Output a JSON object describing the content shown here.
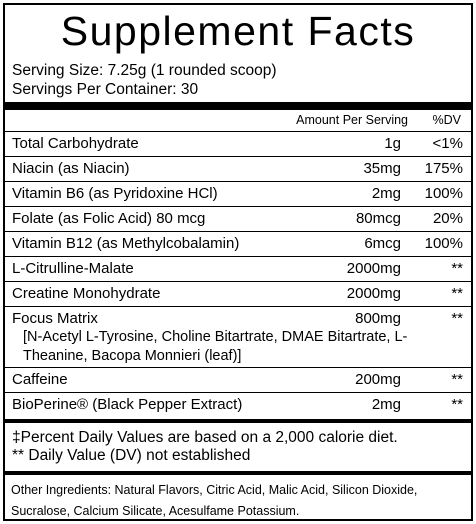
{
  "title": "Supplement Facts",
  "serving_size": "Serving Size: 7.25g (1 rounded scoop)",
  "servings_per_container": "Servings Per Container: 30",
  "header": {
    "amount_label": "Amount Per Serving",
    "dv_label": "%DV"
  },
  "rows": [
    {
      "name": "Total Carbohydrate",
      "amount": "1g",
      "dv": "<1%"
    },
    {
      "name": "Niacin (as Niacin)",
      "amount": "35mg",
      "dv": "175%"
    },
    {
      "name": "Vitamin B6 (as Pyridoxine HCl)",
      "amount": "2mg",
      "dv": "100%"
    },
    {
      "name": "Folate (as Folic Acid) 80 mcg",
      "amount": "80mcg",
      "dv": "20%"
    },
    {
      "name": "Vitamin B12 (as Methylcobalamin)",
      "amount": "6mcg",
      "dv": "100%"
    },
    {
      "name": "L-Citrulline-Malate",
      "amount": "2000mg",
      "dv": "**"
    },
    {
      "name": "Creatine Monohydrate",
      "amount": "2000mg",
      "dv": "**"
    },
    {
      "name": "Focus Matrix",
      "amount": "800mg",
      "dv": "**",
      "detail": "[N-Acetyl L-Tyrosine, Choline Bitartrate, DMAE Bitartrate, L-Theanine, Bacopa Monnieri (leaf)]"
    },
    {
      "name": "Caffeine",
      "amount": "200mg",
      "dv": "**"
    },
    {
      "name": "BioPerine® (Black Pepper Extract)",
      "amount": "2mg",
      "dv": "**"
    }
  ],
  "footnotes": [
    "‡Percent Daily Values are based on a 2,000 calorie diet.",
    "** Daily Value (DV) not established"
  ],
  "other_ingredients": "Other Ingredients: Natural Flavors, Citric Acid, Malic Acid, Silicon Dioxide, Sucralose, Calcium Silicate, Acesulfame Potassium."
}
